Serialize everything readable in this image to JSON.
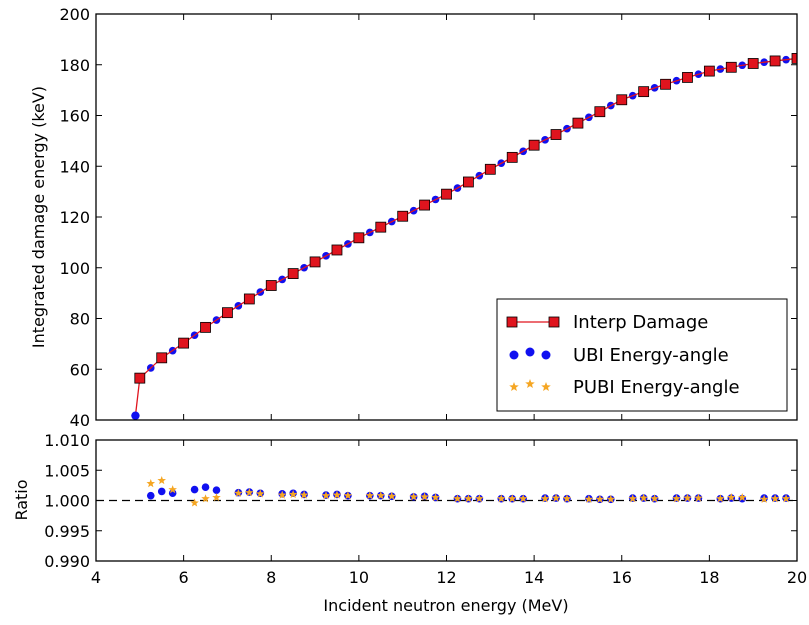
{
  "chart_data": [
    {
      "type": "line",
      "xlabel": "",
      "ylabel": "Integrated damage energy (keV)",
      "xlim": [
        4,
        20
      ],
      "ylim": [
        40,
        200
      ],
      "x_ticks": [
        "4",
        "6",
        "8",
        "10",
        "12",
        "14",
        "16",
        "18",
        "20"
      ],
      "y_ticks": [
        "40",
        "60",
        "80",
        "100",
        "120",
        "140",
        "160",
        "180",
        "200"
      ],
      "legend_position": "lower-right",
      "series": [
        {
          "name": "Interp Damage",
          "marker": "square",
          "color": "#e0141e",
          "x": [
            4.9,
            5,
            5.5,
            6,
            6.5,
            7,
            7.5,
            8,
            8.5,
            9,
            9.5,
            10,
            10.5,
            11,
            11.5,
            12,
            12.5,
            13,
            13.5,
            14,
            14.5,
            15,
            15.5,
            16,
            16.5,
            17,
            17.5,
            18,
            18.5,
            19,
            19.5,
            20
          ],
          "y": [
            41.7,
            56.5,
            64.5,
            70.3,
            76.5,
            82.3,
            87.7,
            93.0,
            97.7,
            102.3,
            107.0,
            111.8,
            116.0,
            120.3,
            124.7,
            129.0,
            133.8,
            138.8,
            143.5,
            148.3,
            152.5,
            157.0,
            161.5,
            166.2,
            169.4,
            172.3,
            175.0,
            177.5,
            179.0,
            180.5,
            181.5,
            182.5
          ]
        },
        {
          "name": "UBI Energy-angle",
          "marker": "circle",
          "color": "#1010f0",
          "x": [
            4.9,
            5.0,
            5.25,
            5.5,
            5.75,
            6.0,
            6.25,
            6.5,
            6.75,
            7.0,
            7.25,
            7.5,
            7.75,
            8.0,
            8.25,
            8.5,
            8.75,
            9.0,
            9.25,
            9.5,
            9.75,
            10.0,
            10.25,
            10.5,
            10.75,
            11.0,
            11.25,
            11.5,
            11.75,
            12.0,
            12.25,
            12.5,
            12.75,
            13.0,
            13.25,
            13.5,
            13.75,
            14.0,
            14.25,
            14.5,
            14.75,
            15.0,
            15.25,
            15.5,
            15.75,
            16.0,
            16.25,
            16.5,
            16.75,
            17.0,
            17.25,
            17.5,
            17.75,
            18.0,
            18.25,
            18.5,
            18.75,
            19.0,
            19.25,
            19.5,
            19.75,
            20.0
          ],
          "y": [
            41.7,
            56.5,
            60.5,
            64.5,
            67.3,
            70.3,
            73.4,
            76.5,
            79.4,
            82.3,
            85.0,
            87.7,
            90.4,
            93.0,
            95.4,
            97.7,
            100.0,
            102.3,
            104.7,
            107.0,
            109.4,
            111.8,
            113.9,
            116.0,
            118.2,
            120.3,
            122.5,
            124.7,
            126.9,
            129.0,
            131.4,
            133.8,
            136.3,
            138.8,
            141.2,
            143.5,
            145.9,
            148.3,
            150.4,
            152.5,
            154.8,
            157.0,
            159.3,
            161.5,
            163.9,
            166.2,
            167.8,
            169.4,
            170.9,
            172.3,
            173.7,
            175.0,
            176.3,
            177.5,
            178.3,
            179.0,
            179.8,
            180.5,
            181.0,
            181.5,
            182.0,
            182.5
          ]
        },
        {
          "name": "PUBI Energy-angle",
          "marker": "star",
          "color": "#f5a623",
          "x": [
            4.9,
            5.0,
            5.25,
            5.5,
            5.75,
            6.0,
            6.25,
            6.5,
            6.75,
            7.0,
            7.25,
            7.5,
            7.75,
            8.0,
            8.25,
            8.5,
            8.75,
            9.0,
            9.25,
            9.5,
            9.75,
            10.0,
            10.25,
            10.5,
            10.75,
            11.0,
            11.25,
            11.5,
            11.75,
            12.0,
            12.25,
            12.5,
            12.75,
            13.0,
            13.25,
            13.5,
            13.75,
            14.0,
            14.25,
            14.5,
            14.75,
            15.0,
            15.25,
            15.5,
            15.75,
            16.0,
            16.25,
            16.5,
            16.75,
            17.0,
            17.25,
            17.5,
            17.75,
            18.0,
            18.25,
            18.5,
            18.75,
            19.0,
            19.25,
            19.5,
            19.75,
            20.0
          ],
          "y": [
            41.7,
            56.5,
            60.5,
            64.5,
            67.3,
            70.3,
            73.4,
            76.5,
            79.4,
            82.3,
            85.0,
            87.7,
            90.4,
            93.0,
            95.4,
            97.7,
            100.0,
            102.3,
            104.7,
            107.0,
            109.4,
            111.8,
            113.9,
            116.0,
            118.2,
            120.3,
            122.5,
            124.7,
            126.9,
            129.0,
            131.4,
            133.8,
            136.3,
            138.8,
            141.2,
            143.5,
            145.9,
            148.3,
            150.4,
            152.5,
            154.8,
            157.0,
            159.3,
            161.5,
            163.9,
            166.2,
            167.8,
            169.4,
            170.9,
            172.3,
            173.7,
            175.0,
            176.3,
            177.5,
            178.3,
            179.0,
            179.8,
            180.5,
            181.0,
            181.5,
            182.0,
            182.5
          ]
        }
      ]
    },
    {
      "type": "scatter",
      "xlabel": "Incident neutron energy (MeV)",
      "ylabel": "Ratio",
      "xlim": [
        4,
        20
      ],
      "ylim": [
        0.99,
        1.01
      ],
      "x_ticks": [
        "4",
        "6",
        "8",
        "10",
        "12",
        "14",
        "16",
        "18",
        "20"
      ],
      "y_ticks": [
        "0.990",
        "0.995",
        "1.000",
        "1.005",
        "1.010"
      ],
      "reference_line": 1.0,
      "series": [
        {
          "name": "UBI Energy-angle",
          "marker": "circle",
          "color": "#1010f0",
          "x": [
            5.25,
            5.5,
            5.75,
            6.25,
            6.5,
            6.75,
            7.25,
            7.5,
            7.75,
            8.25,
            8.5,
            8.75,
            9.25,
            9.5,
            9.75,
            10.25,
            10.5,
            10.75,
            11.25,
            11.5,
            11.75,
            12.25,
            12.5,
            12.75,
            13.25,
            13.5,
            13.75,
            14.25,
            14.5,
            14.75,
            15.25,
            15.5,
            15.75,
            16.25,
            16.5,
            16.75,
            17.25,
            17.5,
            17.75,
            18.25,
            18.5,
            18.75,
            19.25,
            19.5,
            19.75
          ],
          "y": [
            1.0008,
            1.0015,
            1.0012,
            1.0018,
            1.0022,
            1.0017,
            1.0013,
            1.0014,
            1.0012,
            1.0011,
            1.0012,
            1.001,
            1.0009,
            1.001,
            1.0008,
            1.0008,
            1.0008,
            1.0007,
            1.0006,
            1.0007,
            1.0005,
            1.0003,
            1.0003,
            1.0003,
            1.0003,
            1.0003,
            1.0003,
            1.0004,
            1.0004,
            1.0003,
            1.0003,
            1.0002,
            1.0002,
            1.0004,
            1.0004,
            1.0003,
            1.0004,
            1.0004,
            1.0004,
            1.0003,
            1.0004,
            1.0003,
            1.0004,
            1.0004,
            1.0004
          ]
        },
        {
          "name": "PUBI Energy-angle",
          "marker": "star",
          "color": "#f5a623",
          "x": [
            5.25,
            5.5,
            5.75,
            6.25,
            6.5,
            6.75,
            7.25,
            7.5,
            7.75,
            8.25,
            8.5,
            8.75,
            9.25,
            9.5,
            9.75,
            10.25,
            10.5,
            10.75,
            11.25,
            11.5,
            11.75,
            12.25,
            12.5,
            12.75,
            13.25,
            13.5,
            13.75,
            14.25,
            14.5,
            14.75,
            15.25,
            15.5,
            15.75,
            16.25,
            16.5,
            16.75,
            17.25,
            17.5,
            17.75,
            18.25,
            18.5,
            18.75,
            19.25,
            19.5,
            19.75
          ],
          "y": [
            1.0028,
            1.0033,
            1.0018,
            0.9996,
            1.0003,
            1.0005,
            1.0012,
            1.0013,
            1.0011,
            1.0009,
            1.001,
            1.0009,
            1.0008,
            1.0009,
            1.0008,
            1.0008,
            1.0008,
            1.0007,
            1.0006,
            1.0006,
            1.0005,
            1.0003,
            1.0003,
            1.0003,
            1.0003,
            1.0003,
            1.0003,
            1.0003,
            1.0004,
            1.0003,
            1.0002,
            1.0002,
            1.0002,
            1.0003,
            1.0004,
            1.0003,
            1.0003,
            1.0004,
            1.0004,
            1.0003,
            1.0005,
            1.0005,
            1.0002,
            1.0003,
            1.0003
          ]
        }
      ]
    }
  ]
}
